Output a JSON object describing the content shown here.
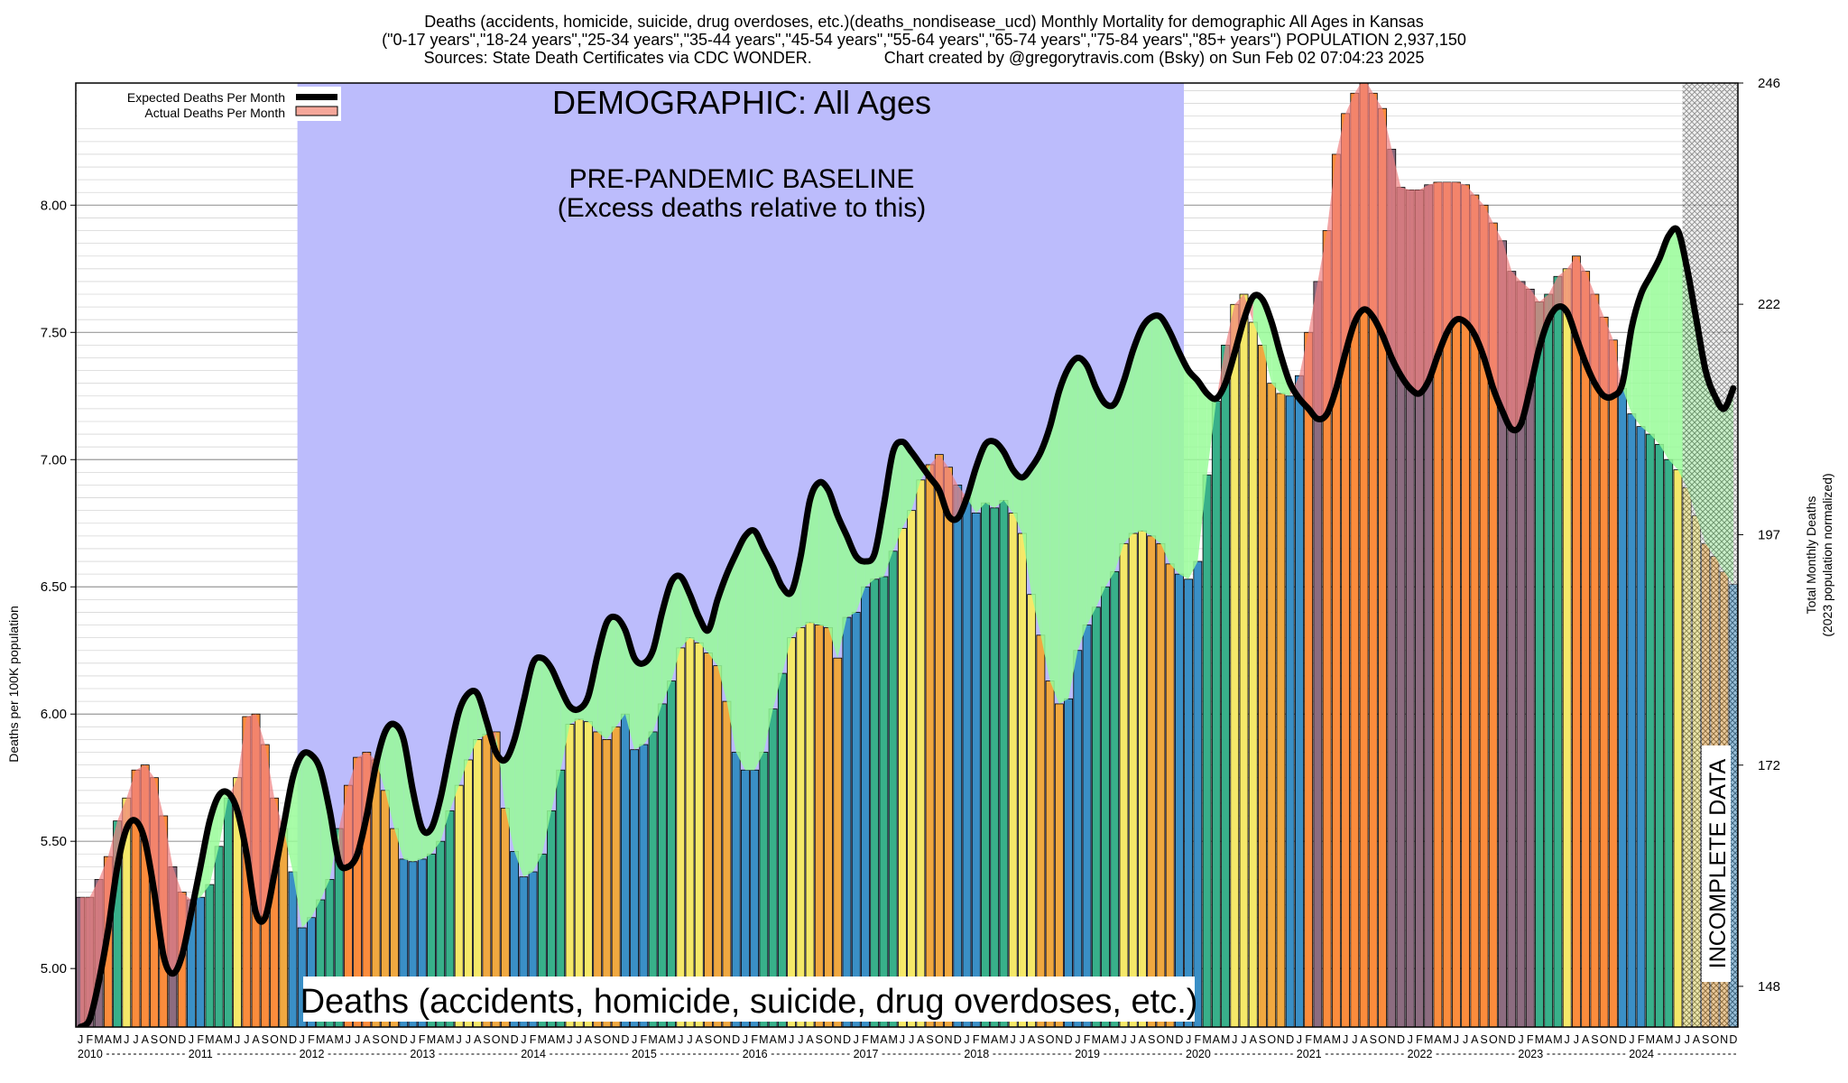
{
  "header": {
    "line1": "Deaths (accidents, homicide, suicide, drug overdoses, etc.)(deaths_nondisease_ucd) Monthly Mortality for demographic All Ages in Kansas",
    "line2": "(\"0-17 years\",\"18-24 years\",\"25-34 years\",\"35-44 years\",\"45-54 years\",\"55-64 years\",\"65-74 years\",\"75-84 years\",\"85+ years\") POPULATION 2,937,150",
    "line3_left": "Sources: State Death Certificates via CDC WONDER.",
    "line3_right": "Chart created by @gregorytravis.com (Bsky) on Sun Feb 02 07:04:23 2025"
  },
  "annotations": {
    "demographic": "DEMOGRAPHIC: All Ages",
    "baseline_line1": "PRE-PANDEMIC BASELINE",
    "baseline_line2": "(Excess deaths relative to this)",
    "cause": "Deaths (accidents, homicide, suicide, drug overdoses, etc.)",
    "incomplete": "INCOMPLETE DATA"
  },
  "colors": {
    "baseline_shade": "#bcbcfc",
    "expected_line": "#000000",
    "excess_fill": "#98fc98",
    "deficit_fill": "#f08080",
    "bar_winter": "#3a8fc6",
    "bar_spring": "#38b08a",
    "bar_summer": "#f5e869",
    "bar_fall": "#f0a840",
    "bar_excess": "#fb8c3c",
    "bar_high": "#8c6c80"
  },
  "chart_data": {
    "type": "bar",
    "title": "Deaths (accidents, homicide, suicide, drug overdoses, etc.)(deaths_nondisease_ucd) Monthly Mortality for demographic All Ages in Kansas",
    "ylabel": "Deaths per 100K population",
    "ylabel_right_line1": "Total Monthly Deaths",
    "ylabel_right_line2": "(2023 population normalized)",
    "ylim": [
      4.77,
      8.48
    ],
    "yticks": [
      5.0,
      5.5,
      6.0,
      6.5,
      7.0,
      7.5,
      8.0
    ],
    "ytick_labels": [
      "5.00",
      "5.50",
      "6.00",
      "6.50",
      "7.00",
      "7.50",
      "8.00"
    ],
    "right_ticks": [
      148,
      172,
      197,
      222,
      246
    ],
    "legend": {
      "position": "top-left",
      "entries": [
        "Expected Deaths Per Month",
        "Actual Deaths Per Month"
      ]
    },
    "month_letters": [
      "J",
      "F",
      "M",
      "A",
      "M",
      "J",
      "J",
      "A",
      "S",
      "O",
      "N",
      "D"
    ],
    "years": [
      "2010",
      "2011",
      "2012",
      "2013",
      "2014",
      "2015",
      "2016",
      "2017",
      "2018",
      "2019",
      "2020",
      "2021",
      "2022",
      "2023",
      "2024"
    ],
    "baseline_period": [
      "2012-01",
      "2019-12"
    ],
    "incomplete_period": [
      "2024-07",
      "2024-12"
    ],
    "actual_deaths_per_100k": [
      [
        5.28,
        5.28,
        5.35,
        5.44,
        5.58,
        5.67,
        5.78,
        5.8,
        5.75,
        5.6,
        5.4,
        5.3
      ],
      [
        5.27,
        5.28,
        5.33,
        5.48,
        5.67,
        5.75,
        5.99,
        6.0,
        5.88,
        5.67,
        5.55,
        5.38
      ],
      [
        5.16,
        5.2,
        5.27,
        5.35,
        5.55,
        5.72,
        5.83,
        5.85,
        5.82,
        5.7,
        5.55,
        5.43
      ],
      [
        5.42,
        5.43,
        5.45,
        5.5,
        5.62,
        5.72,
        5.82,
        5.9,
        5.92,
        5.93,
        5.63,
        5.46
      ],
      [
        5.36,
        5.38,
        5.45,
        5.62,
        5.78,
        5.96,
        5.98,
        5.97,
        5.93,
        5.9,
        5.95,
        6.0
      ],
      [
        5.86,
        5.88,
        5.93,
        6.04,
        6.13,
        6.26,
        6.3,
        6.28,
        6.24,
        6.19,
        6.05,
        5.85
      ],
      [
        5.78,
        5.78,
        5.85,
        6.02,
        6.16,
        6.3,
        6.34,
        6.36,
        6.35,
        6.34,
        6.22,
        6.38
      ],
      [
        6.4,
        6.5,
        6.53,
        6.54,
        6.64,
        6.73,
        6.8,
        6.92,
        6.98,
        7.02,
        6.97,
        6.9
      ],
      [
        6.85,
        6.79,
        6.83,
        6.81,
        6.84,
        6.79,
        6.71,
        6.47,
        6.31,
        6.13,
        6.04,
        6.06
      ],
      [
        6.25,
        6.35,
        6.42,
        6.5,
        6.56,
        6.67,
        6.71,
        6.72,
        6.7,
        6.67,
        6.59,
        6.55
      ],
      [
        6.53,
        6.6,
        6.94,
        7.23,
        7.45,
        7.61,
        7.65,
        7.54,
        7.45,
        7.3,
        7.26,
        7.25
      ],
      [
        7.33,
        7.5,
        7.7,
        7.9,
        8.2,
        8.36,
        8.44,
        8.5,
        8.44,
        8.38,
        8.22,
        8.07
      ],
      [
        8.06,
        8.06,
        8.08,
        8.09,
        8.09,
        8.09,
        8.08,
        8.04,
        8.0,
        7.93,
        7.86,
        7.74
      ],
      [
        7.7,
        7.67,
        7.62,
        7.65,
        7.72,
        7.75,
        7.8,
        7.74,
        7.65,
        7.56,
        7.47,
        7.28
      ],
      [
        7.18,
        7.13,
        7.1,
        7.06,
        7.0,
        6.96,
        6.89,
        6.78,
        6.67,
        6.62,
        6.56,
        6.51
      ]
    ],
    "expected_deaths_per_100k": [
      [
        4.77,
        4.8,
        4.95,
        5.15,
        5.4,
        5.55,
        5.58,
        5.5,
        5.3,
        5.05,
        4.98,
        5.05
      ],
      [
        5.22,
        5.4,
        5.58,
        5.68,
        5.69,
        5.62,
        5.45,
        5.22,
        5.2,
        5.37,
        5.56,
        5.75
      ],
      [
        5.84,
        5.84,
        5.78,
        5.62,
        5.42,
        5.4,
        5.45,
        5.6,
        5.8,
        5.93,
        5.96,
        5.9
      ],
      [
        5.7,
        5.55,
        5.55,
        5.67,
        5.85,
        6.01,
        6.08,
        6.08,
        5.97,
        5.85,
        5.82,
        5.9
      ],
      [
        6.05,
        6.2,
        6.22,
        6.18,
        6.1,
        6.03,
        6.02,
        6.07,
        6.23,
        6.36,
        6.38,
        6.33
      ],
      [
        6.22,
        6.2,
        6.25,
        6.4,
        6.52,
        6.54,
        6.47,
        6.38,
        6.33,
        6.45,
        6.55,
        6.63
      ],
      [
        6.7,
        6.72,
        6.65,
        6.58,
        6.5,
        6.48,
        6.62,
        6.84,
        6.91,
        6.88,
        6.78,
        6.7
      ],
      [
        6.62,
        6.6,
        6.63,
        6.82,
        7.03,
        7.07,
        7.03,
        6.98,
        6.93,
        6.88,
        6.78,
        6.77
      ],
      [
        6.85,
        6.97,
        7.06,
        7.07,
        7.03,
        6.96,
        6.93,
        6.97,
        7.03,
        7.13,
        7.27,
        7.36
      ],
      [
        7.4,
        7.37,
        7.28,
        7.22,
        7.22,
        7.31,
        7.43,
        7.52,
        7.56,
        7.56,
        7.5,
        7.42
      ],
      [
        7.35,
        7.31,
        7.26,
        7.24,
        7.3,
        7.42,
        7.55,
        7.64,
        7.63,
        7.54,
        7.41,
        7.3
      ],
      [
        7.24,
        7.2,
        7.16,
        7.18,
        7.28,
        7.42,
        7.54,
        7.59,
        7.56,
        7.49,
        7.4,
        7.33
      ],
      [
        7.28,
        7.26,
        7.31,
        7.41,
        7.5,
        7.55,
        7.54,
        7.49,
        7.4,
        7.28,
        7.19,
        7.12
      ],
      [
        7.14,
        7.28,
        7.44,
        7.55,
        7.6,
        7.58,
        7.48,
        7.38,
        7.3,
        7.25,
        7.25,
        7.3
      ],
      [
        7.52,
        7.65,
        7.72,
        7.79,
        7.88,
        7.9,
        7.75,
        7.55,
        7.35,
        7.25,
        7.2,
        7.28
      ]
    ]
  }
}
